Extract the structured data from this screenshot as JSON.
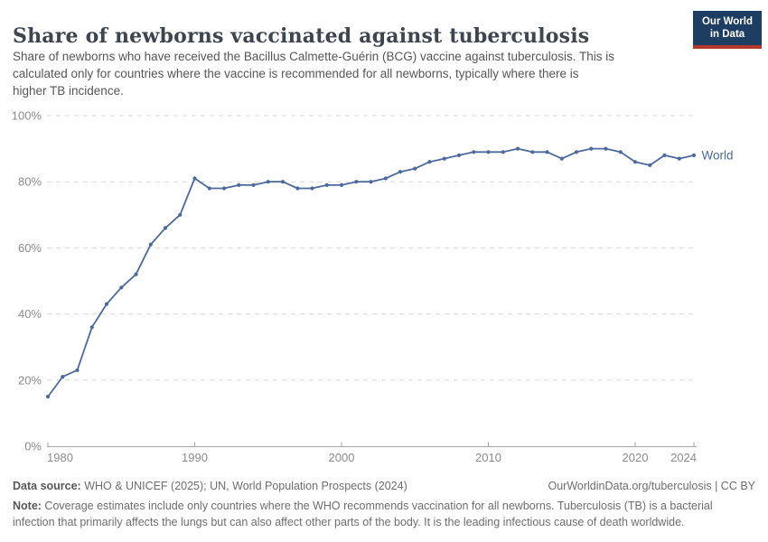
{
  "header": {
    "title": "Share of newborns vaccinated against tuberculosis",
    "subtitle_lines": [
      "Share of newborns who have received the Bacillus Calmette-Guérin (BCG) vaccine against tuberculosis. This is",
      "calculated only for countries where the vaccine is recommended for all newborns, typically where there is",
      "higher TB incidence."
    ],
    "logo": {
      "line1": "Our World",
      "line2": "in Data",
      "bg_color": "#1d3d63",
      "accent_color": "#b5382c"
    }
  },
  "chart_data": {
    "type": "line",
    "title": "Share of newborns vaccinated against tuberculosis",
    "xlabel": "",
    "ylabel": "",
    "unit": "%",
    "xlim": [
      1980,
      2024
    ],
    "ylim": [
      0,
      100
    ],
    "grid": "horizontal-dashed",
    "legend_position": "end-of-line-label",
    "series": [
      {
        "name": "World",
        "color": "#4c6a9c",
        "points": [
          [
            1980,
            15
          ],
          [
            1981,
            21
          ],
          [
            1982,
            23
          ],
          [
            1983,
            36
          ],
          [
            1984,
            43
          ],
          [
            1985,
            48
          ],
          [
            1986,
            52
          ],
          [
            1987,
            61
          ],
          [
            1988,
            66
          ],
          [
            1989,
            70
          ],
          [
            1990,
            81
          ],
          [
            1991,
            78
          ],
          [
            1992,
            78
          ],
          [
            1993,
            79
          ],
          [
            1994,
            79
          ],
          [
            1995,
            80
          ],
          [
            1996,
            80
          ],
          [
            1997,
            78
          ],
          [
            1998,
            78
          ],
          [
            1999,
            79
          ],
          [
            2000,
            79
          ],
          [
            2001,
            80
          ],
          [
            2002,
            80
          ],
          [
            2003,
            81
          ],
          [
            2004,
            83
          ],
          [
            2005,
            84
          ],
          [
            2006,
            86
          ],
          [
            2007,
            87
          ],
          [
            2008,
            88
          ],
          [
            2009,
            89
          ],
          [
            2010,
            89
          ],
          [
            2011,
            89
          ],
          [
            2012,
            90
          ],
          [
            2013,
            89
          ],
          [
            2014,
            89
          ],
          [
            2015,
            87
          ],
          [
            2016,
            89
          ],
          [
            2017,
            90
          ],
          [
            2018,
            90
          ],
          [
            2019,
            89
          ],
          [
            2020,
            86
          ],
          [
            2021,
            85
          ],
          [
            2022,
            88
          ],
          [
            2023,
            87
          ],
          [
            2024,
            88
          ]
        ]
      }
    ],
    "y_ticks": [
      {
        "value": 0,
        "label": "0%"
      },
      {
        "value": 20,
        "label": "20%"
      },
      {
        "value": 40,
        "label": "40%"
      },
      {
        "value": 60,
        "label": "60%"
      },
      {
        "value": 80,
        "label": "80%"
      },
      {
        "value": 100,
        "label": "100%"
      }
    ],
    "x_ticks": [
      {
        "value": 1980,
        "label": "1980",
        "anchor": "start"
      },
      {
        "value": 1990,
        "label": "1990",
        "anchor": "middle"
      },
      {
        "value": 2000,
        "label": "2000",
        "anchor": "middle"
      },
      {
        "value": 2010,
        "label": "2010",
        "anchor": "middle"
      },
      {
        "value": 2020,
        "label": "2020",
        "anchor": "middle"
      },
      {
        "value": 2024,
        "label": "2024",
        "anchor": "end"
      }
    ],
    "colors": {
      "line": "#4c6a9c",
      "grid": "#d9d9d9",
      "axis": "#a3a3a3",
      "tick_label": "#8c8c8c"
    }
  },
  "footer": {
    "source_label": "Data source:",
    "source_text": " WHO & UNICEF (2025); UN, World Population Prospects (2024)",
    "link_text": "OurWorldinData.org/tuberculosis | CC BY",
    "note_label": "Note:",
    "note_lines": [
      " Coverage estimates include only countries where the WHO recommends vaccination for all newborns. Tuberculosis (TB) is a bacterial",
      "infection that primarily affects the lungs but can also affect other parts of the body. It is the leading infectious cause of death worldwide."
    ]
  }
}
